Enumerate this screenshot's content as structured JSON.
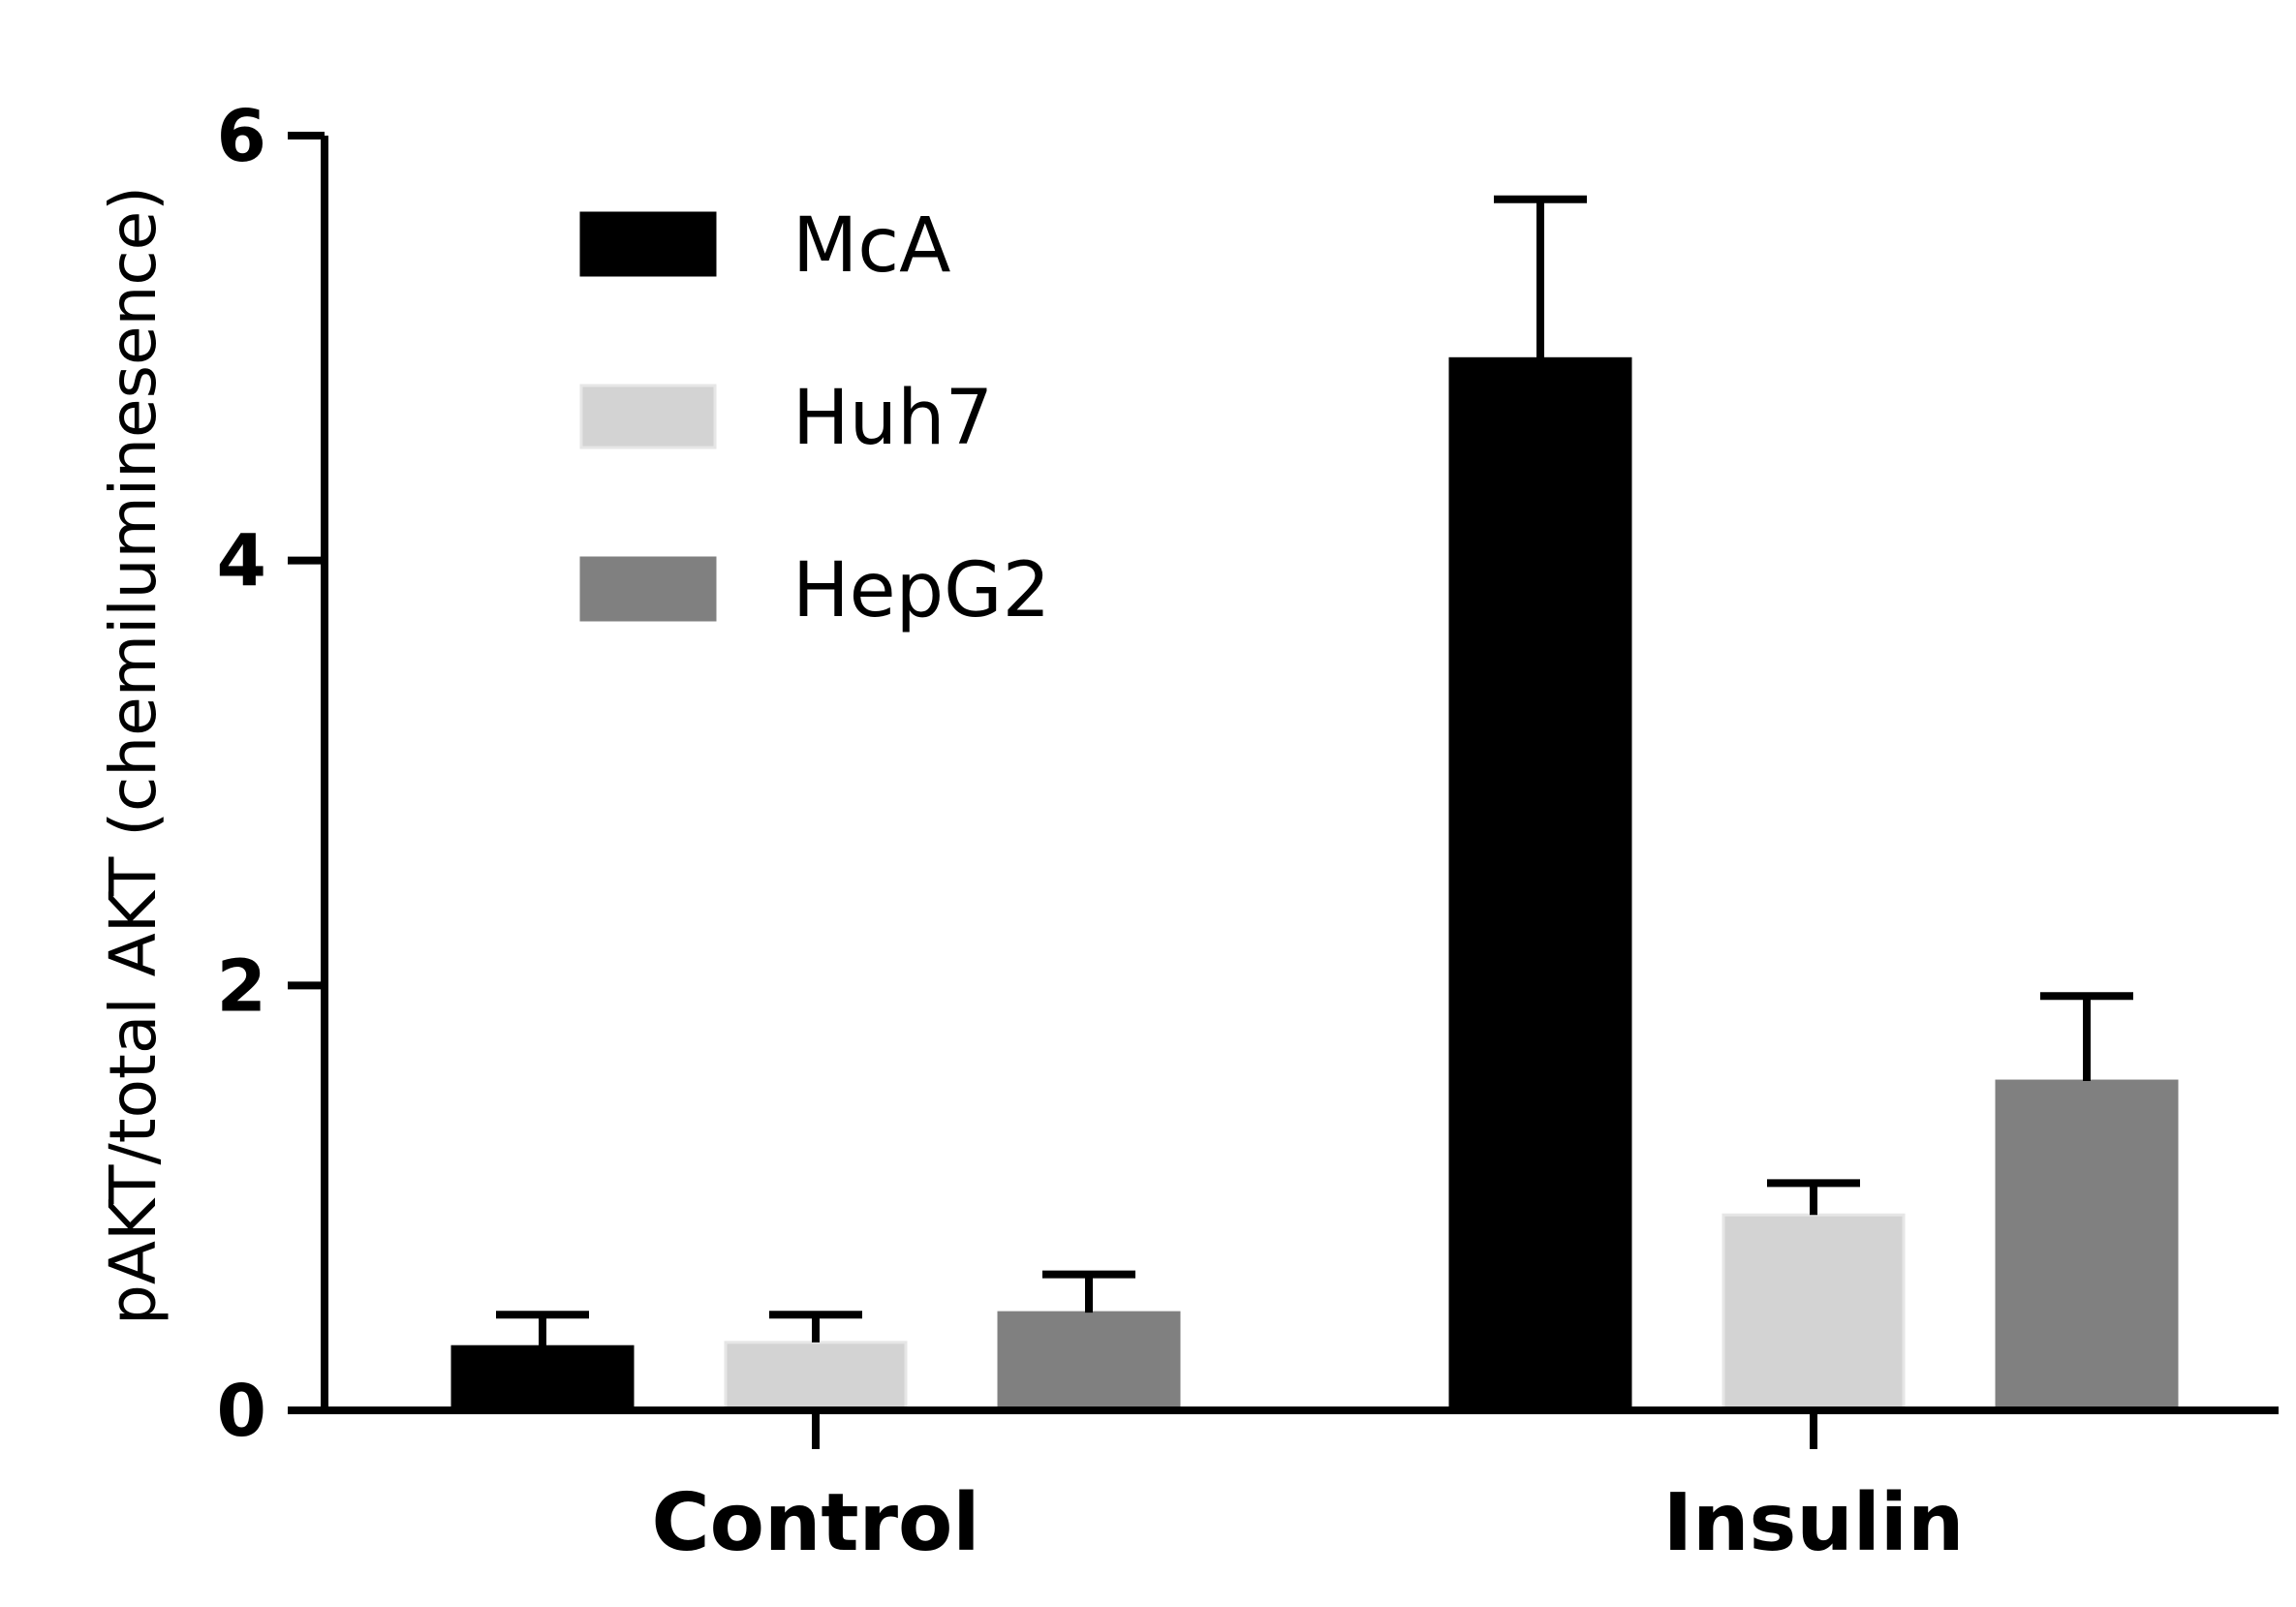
{
  "chart_data": {
    "type": "bar",
    "title": "",
    "xlabel": "",
    "ylabel": "pAKT/total AKT (chemiluminesence)",
    "ylim": [
      0,
      6
    ],
    "yticks": [
      "0",
      "2",
      "4",
      "6"
    ],
    "ytick_values": [
      0,
      2,
      4,
      6
    ],
    "categories": [
      "Control",
      "Insulin"
    ],
    "legend_position": "top-left",
    "grid": false,
    "series": [
      {
        "name": "McA",
        "color": "#000000",
        "values": [
          0.3,
          4.95
        ],
        "errors": [
          0.15,
          0.75
        ]
      },
      {
        "name": "Huh7",
        "color": "#d3d3d3",
        "values": [
          0.32,
          0.92
        ],
        "errors": [
          0.13,
          0.15
        ]
      },
      {
        "name": "HepG2",
        "color": "#808080",
        "values": [
          0.46,
          1.55
        ],
        "errors": [
          0.18,
          0.4
        ]
      }
    ]
  }
}
